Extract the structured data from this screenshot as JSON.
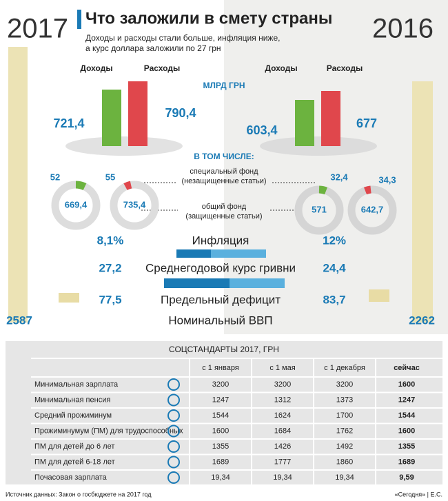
{
  "header": {
    "title": "Что заложили в смету страны",
    "subtitle": [
      "Доходы и расходы стали больше, инфляция ниже,",
      "а курс доллара заложили по 27 грн"
    ]
  },
  "years": {
    "left": "2017",
    "right": "2016"
  },
  "units": "МЛРД ГРН",
  "columns": {
    "income": "Доходы",
    "expenses": "Расходы"
  },
  "left": {
    "income": "721,4",
    "expenses": "790,4",
    "special_income": "52",
    "special_expenses": "55",
    "general_income": "669,4",
    "general_expenses": "735,4",
    "inflation": "8,1%",
    "rate": "27,2",
    "deficit": "77,5",
    "gdp": "2587"
  },
  "right": {
    "income": "603,4",
    "expenses": "677",
    "special_income": "32,4",
    "special_expenses": "34,3",
    "general_income": "571",
    "general_expenses": "642,7",
    "inflation": "12%",
    "rate": "24,4",
    "deficit": "83,7",
    "gdp": "2262"
  },
  "included": "В ТОМ ЧИСЛЕ:",
  "special_fund": [
    "специальный фонд",
    "(незащищенные статьи)"
  ],
  "general_fund": [
    "общий фонд",
    "(защищенные статьи)"
  ],
  "indicators": {
    "inflation": "Инфляция",
    "rate": "Среднегодовой курс гривни",
    "deficit": "Предельный дефицит",
    "gdp": "Номинальный ВВП"
  },
  "table": {
    "title": "СОЦСТАНДАРТЫ 2017, ГРН",
    "columns": [
      "с 1 января",
      "с 1 мая",
      "с 1 декабря",
      "сейчас"
    ],
    "rows": [
      [
        "Минимальная зарплата",
        "3200",
        "3200",
        "3200",
        "1600"
      ],
      [
        "Минимальная пенсия",
        "1247",
        "1312",
        "1373",
        "1247"
      ],
      [
        "Средний прожиминум",
        "1544",
        "1624",
        "1700",
        "1544"
      ],
      [
        "Прожиминумум (ПМ) для трудоспособных",
        "1600",
        "1684",
        "1762",
        "1600"
      ],
      [
        "ПМ для детей до 6 лет",
        "1355",
        "1426",
        "1492",
        "1355"
      ],
      [
        "ПМ для детей  6-18 лет",
        "1689",
        "1777",
        "1860",
        "1689"
      ],
      [
        "Почасовая зарплата",
        "19,34",
        "19,34",
        "19,34",
        "9,59"
      ]
    ]
  },
  "footer": {
    "source": "Источник данных: Закон о госбюджете на 2017 год",
    "credit": "«Сегодня» | Е.С."
  }
}
